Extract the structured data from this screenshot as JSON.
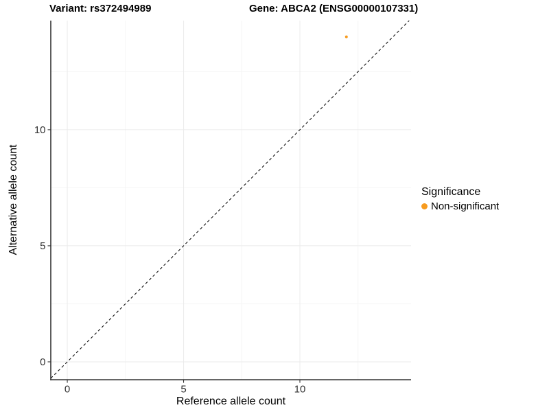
{
  "titles": {
    "left": "Variant: rs372494989",
    "right": "Gene: ABCA2 (ENSG00000107331)"
  },
  "axes": {
    "x_label": "Reference allele count",
    "y_label": "Alternative allele count"
  },
  "legend": {
    "title": "Significance",
    "items": [
      {
        "label": "Non-significant",
        "color": "#F79B1E",
        "marker": "circle-icon"
      }
    ]
  },
  "colors": {
    "point_non_significant": "#F79B1E",
    "axis_line": "#333333",
    "tick_label": "#333333",
    "grid_major": "#EBEBEB",
    "grid_minor": "#F5F5F5",
    "identity_line": "#111111",
    "background": "#FFFFFF"
  },
  "chart_data": {
    "type": "scatter",
    "title": "Variant: rs372494989   Gene: ABCA2 (ENSG00000107331)",
    "xlabel": "Reference allele count",
    "ylabel": "Alternative allele count",
    "xlim": [
      -0.71,
      14.78
    ],
    "ylim": [
      -0.77,
      14.7
    ],
    "x_ticks": [
      0,
      5,
      10
    ],
    "y_ticks": [
      0,
      5,
      10
    ],
    "x_minor_ticks": [
      2.5,
      7.5,
      12.5
    ],
    "y_minor_ticks": [
      2.5,
      7.5,
      12.5
    ],
    "grid": "major+minor",
    "legend_position": "right",
    "series": [
      {
        "name": "Non-significant",
        "color": "#F79B1E",
        "points": [
          {
            "x": 12,
            "y": 14
          }
        ]
      }
    ],
    "reference_line": {
      "type": "identity",
      "slope": 1,
      "intercept": 0,
      "style": "dashed",
      "color": "#111111"
    }
  }
}
